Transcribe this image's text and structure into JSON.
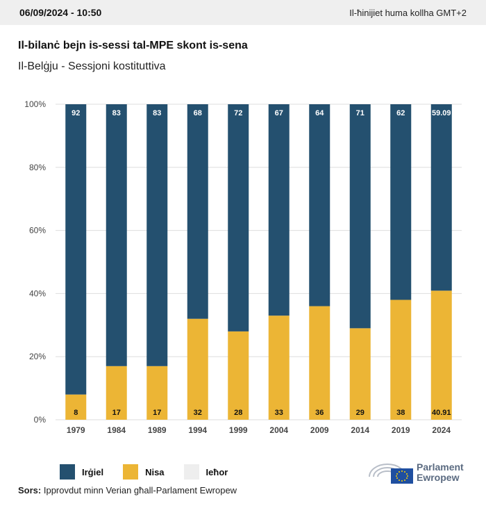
{
  "header": {
    "date": "06/09/2024 - 10:50",
    "timezone_note": "Il-ħinijiet huma kollha GMT+2"
  },
  "title": "Il-bilanċ bejn is-sessi tal-MPE skont is-sena",
  "subtitle": "Il-Belġju - Sessjoni kostituttiva",
  "legend": [
    {
      "label": "Irġiel",
      "color": "#24506f"
    },
    {
      "label": "Nisa",
      "color": "#ecb535"
    },
    {
      "label": "Ieħor",
      "color": "#eeeeee"
    }
  ],
  "source": {
    "prefix": "Sors:",
    "text": "Ipprovdut minn Verian għall-Parlament Ewropew"
  },
  "logo": {
    "line1": "Parlament",
    "line2": "Ewropew"
  },
  "chart_data": {
    "type": "bar",
    "stacked": true,
    "categories": [
      "1979",
      "1984",
      "1989",
      "1994",
      "1999",
      "2004",
      "2009",
      "2014",
      "2019",
      "2024"
    ],
    "series": [
      {
        "name": "Nisa",
        "color": "#ecb535",
        "values": [
          8,
          17,
          17,
          32,
          28,
          33,
          36,
          29,
          38,
          40.91
        ],
        "labels": [
          "8",
          "17",
          "17",
          "32",
          "28",
          "33",
          "36",
          "29",
          "38",
          "40.91"
        ]
      },
      {
        "name": "Irġiel",
        "color": "#24506f",
        "values": [
          92,
          83,
          83,
          68,
          72,
          67,
          64,
          71,
          62,
          59.09
        ],
        "labels": [
          "92",
          "83",
          "83",
          "68",
          "72",
          "67",
          "64",
          "71",
          "62",
          "59.09"
        ]
      }
    ],
    "ylim": [
      0,
      100
    ],
    "yticks": [
      0,
      20,
      40,
      60,
      80,
      100
    ],
    "ytick_labels": [
      "0%",
      "20%",
      "40%",
      "60%",
      "80%",
      "100%"
    ],
    "grid": true
  }
}
